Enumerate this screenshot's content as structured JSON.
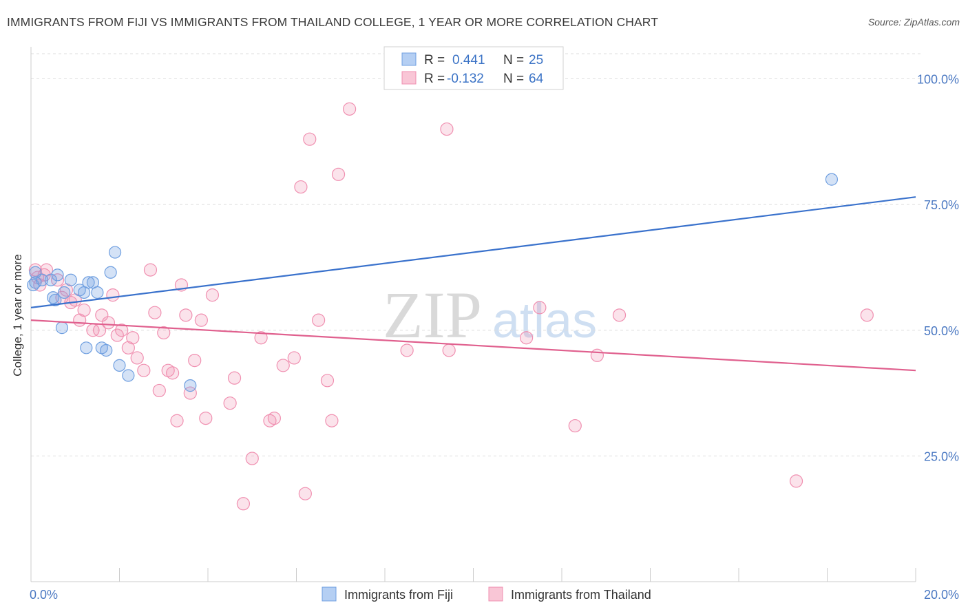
{
  "header": {
    "title": "IMMIGRANTS FROM FIJI VS IMMIGRANTS FROM THAILAND COLLEGE, 1 YEAR OR MORE CORRELATION CHART",
    "source": "Source: ZipAtlas.com"
  },
  "watermark": {
    "zip": "ZIP",
    "atlas": "atlas"
  },
  "legend": {
    "series": [
      {
        "r_label": "R =",
        "r_value": "0.441",
        "n_label": "N =",
        "n_value": "25"
      },
      {
        "r_label": "R =",
        "r_value": "-0.132",
        "n_label": "N =",
        "n_value": "64"
      }
    ]
  },
  "chart_data": {
    "type": "scatter",
    "title": "IMMIGRANTS FROM FIJI VS IMMIGRANTS FROM THAILAND COLLEGE, 1 YEAR OR MORE CORRELATION CHART",
    "xlabel": "",
    "ylabel": "College, 1 year or more",
    "xlim": [
      0,
      20
    ],
    "ylim": [
      0,
      105
    ],
    "x_tick_labels": [
      "0.0%",
      "20.0%"
    ],
    "y_ticks": [
      25,
      50,
      75,
      100
    ],
    "y_tick_labels": [
      "25.0%",
      "50.0%",
      "75.0%",
      "100.0%"
    ],
    "colors": {
      "fiji": "#6f9fe0",
      "thailand": "#f08fb0",
      "fiji_line": "#3a72cc",
      "thailand_line": "#e0608e"
    },
    "series": [
      {
        "name": "Immigrants from Fiji",
        "key": "fiji",
        "trend": {
          "x0": 0,
          "y0": 54.5,
          "x1": 20,
          "y1": 76.5
        },
        "points": [
          [
            0.1,
            61.5
          ],
          [
            0.1,
            59.5
          ],
          [
            0.25,
            60
          ],
          [
            0.45,
            60
          ],
          [
            0.6,
            61
          ],
          [
            0.9,
            60
          ],
          [
            0.5,
            56.5
          ],
          [
            0.55,
            56
          ],
          [
            0.75,
            57.5
          ],
          [
            1.1,
            58
          ],
          [
            1.3,
            59.5
          ],
          [
            1.2,
            57.5
          ],
          [
            1.5,
            57.5
          ],
          [
            1.4,
            59.5
          ],
          [
            1.8,
            61.5
          ],
          [
            1.9,
            65.5
          ],
          [
            0.7,
            50.5
          ],
          [
            1.25,
            46.5
          ],
          [
            1.7,
            46
          ],
          [
            1.6,
            46.5
          ],
          [
            2.0,
            43
          ],
          [
            2.2,
            41
          ],
          [
            3.6,
            39
          ],
          [
            18.1,
            80
          ],
          [
            0.05,
            59
          ]
        ]
      },
      {
        "name": "Immigrants from Thailand",
        "key": "thailand",
        "trend": {
          "x0": 0,
          "y0": 52,
          "x1": 20,
          "y1": 42
        },
        "points": [
          [
            0.1,
            62
          ],
          [
            0.15,
            60.5
          ],
          [
            0.2,
            59
          ],
          [
            0.3,
            61
          ],
          [
            0.6,
            60
          ],
          [
            0.7,
            56.5
          ],
          [
            0.8,
            58
          ],
          [
            0.9,
            55.5
          ],
          [
            1.1,
            52
          ],
          [
            1.2,
            54
          ],
          [
            1.4,
            50
          ],
          [
            1.55,
            50
          ],
          [
            1.6,
            53
          ],
          [
            1.75,
            51.5
          ],
          [
            1.85,
            57
          ],
          [
            1.95,
            49
          ],
          [
            2.05,
            50
          ],
          [
            2.2,
            46.5
          ],
          [
            2.3,
            48.5
          ],
          [
            2.4,
            44.5
          ],
          [
            2.55,
            42
          ],
          [
            2.7,
            62
          ],
          [
            2.8,
            53.5
          ],
          [
            2.9,
            38
          ],
          [
            3.0,
            49.5
          ],
          [
            3.1,
            42
          ],
          [
            3.2,
            41.5
          ],
          [
            3.3,
            32
          ],
          [
            3.4,
            59
          ],
          [
            3.5,
            53
          ],
          [
            3.6,
            37.5
          ],
          [
            3.7,
            44
          ],
          [
            3.85,
            52
          ],
          [
            3.95,
            32.5
          ],
          [
            4.1,
            57
          ],
          [
            4.5,
            35.5
          ],
          [
            4.6,
            40.5
          ],
          [
            5.0,
            24.5
          ],
          [
            4.8,
            15.5
          ],
          [
            5.2,
            48.5
          ],
          [
            5.4,
            32
          ],
          [
            5.5,
            32.5
          ],
          [
            5.7,
            43
          ],
          [
            5.95,
            44.5
          ],
          [
            6.2,
            17.5
          ],
          [
            6.1,
            78.5
          ],
          [
            6.3,
            88
          ],
          [
            6.5,
            52
          ],
          [
            6.7,
            40
          ],
          [
            6.8,
            32
          ],
          [
            6.95,
            81
          ],
          [
            7.2,
            94
          ],
          [
            8.5,
            46
          ],
          [
            9.4,
            90
          ],
          [
            9.45,
            46
          ],
          [
            11.2,
            48.5
          ],
          [
            11.5,
            54.5
          ],
          [
            12.3,
            31
          ],
          [
            12.8,
            45
          ],
          [
            13.3,
            53
          ],
          [
            17.3,
            20
          ],
          [
            18.9,
            53
          ],
          [
            0.35,
            62
          ],
          [
            1.0,
            56
          ]
        ]
      }
    ]
  }
}
